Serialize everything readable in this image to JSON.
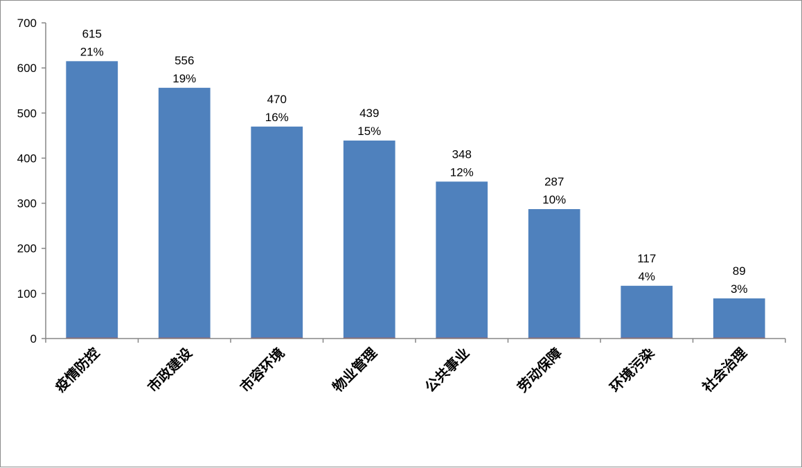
{
  "chart_data": {
    "type": "bar",
    "title": "",
    "xlabel": "",
    "ylabel": "",
    "categories": [
      "疫情防控",
      "市政建设",
      "市容环境",
      "物业管理",
      "公共事业",
      "劳动保障",
      "环境污染",
      "社会治理"
    ],
    "values": [
      615,
      556,
      470,
      439,
      348,
      287,
      117,
      89
    ],
    "percent_labels": [
      "21%",
      "19%",
      "16%",
      "15%",
      "12%",
      "10%",
      "4%",
      "3%"
    ],
    "value_labels": [
      "615",
      "556",
      "470",
      "439",
      "348",
      "287",
      "117",
      "89"
    ],
    "ylim": [
      0,
      700
    ],
    "yticks": [
      0,
      100,
      200,
      300,
      400,
      500,
      600,
      700
    ],
    "ytick_labels": [
      "0",
      "100",
      "200",
      "300",
      "400",
      "500",
      "600",
      "700"
    ],
    "grid": false,
    "legend": "none",
    "colors": {
      "bar": "#4f81bd",
      "axis": "#868686",
      "bar_baseline": "#c0504d"
    }
  }
}
